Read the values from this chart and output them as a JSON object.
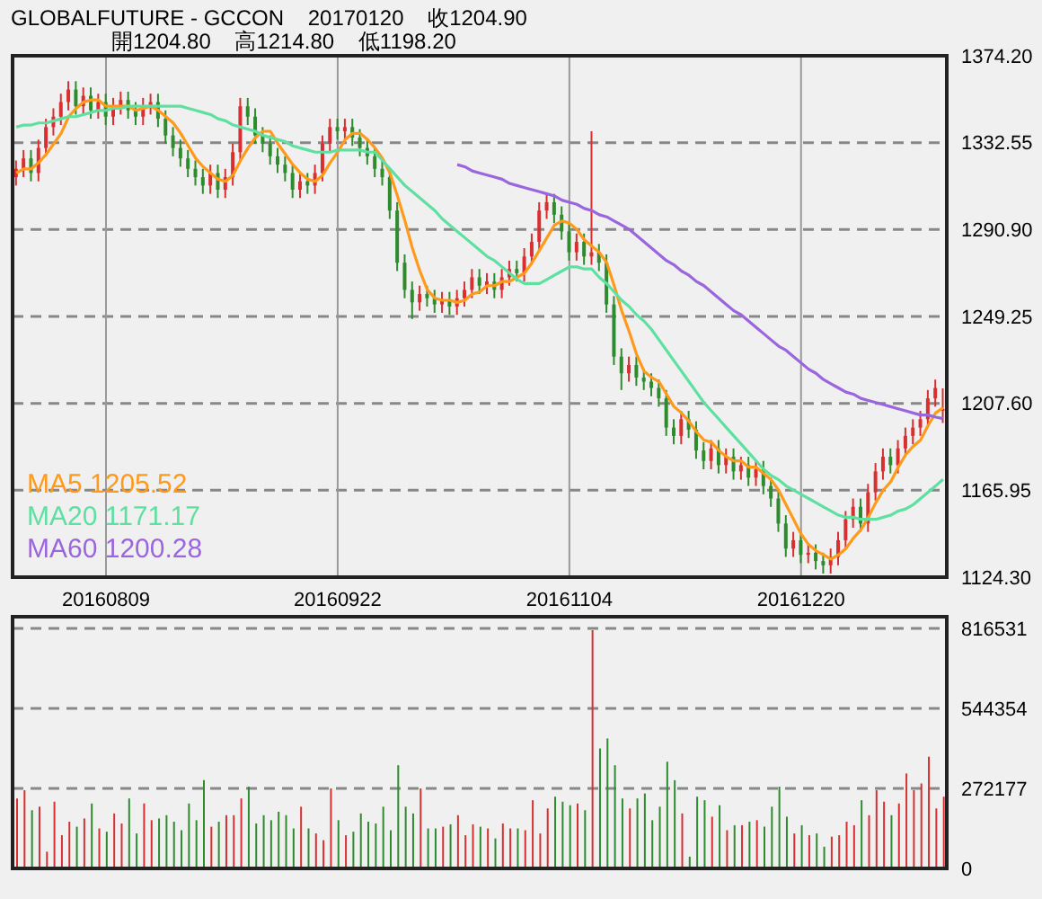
{
  "chart_data": [
    {
      "type": "candlestick",
      "title": "GLOBALFUTURE - GCCON    20170120    收1204.90",
      "subtitle": "開1204.80    高1214.80    低1198.20",
      "categories": [
        null,
        null,
        null,
        null,
        null,
        null,
        null,
        null,
        null,
        null,
        null,
        null,
        "20160809",
        null,
        null,
        null,
        null,
        null,
        null,
        null,
        null,
        null,
        null,
        null,
        null,
        null,
        null,
        null,
        null,
        null,
        null,
        null,
        null,
        null,
        null,
        null,
        null,
        null,
        null,
        null,
        null,
        null,
        null,
        "20160922",
        null,
        null,
        null,
        null,
        null,
        null,
        null,
        null,
        null,
        null,
        null,
        null,
        null,
        null,
        null,
        null,
        null,
        null,
        null,
        null,
        null,
        null,
        null,
        null,
        null,
        null,
        null,
        null,
        null,
        null,
        "20161104",
        null,
        null,
        null,
        null,
        null,
        null,
        null,
        null,
        null,
        null,
        null,
        null,
        null,
        null,
        null,
        null,
        null,
        null,
        null,
        null,
        null,
        null,
        null,
        null,
        null,
        null,
        null,
        null,
        null,
        null,
        "20161220",
        null,
        null,
        null,
        null,
        null,
        null,
        null,
        null,
        null,
        null,
        null,
        null,
        null,
        null,
        null,
        null,
        null,
        null,
        null
      ],
      "ohlc": [
        [
          1316,
          1324,
          1312,
          1320
        ],
        [
          1320,
          1329,
          1316,
          1325
        ],
        [
          1325,
          1329,
          1314,
          1318
        ],
        [
          1318,
          1334,
          1314,
          1330
        ],
        [
          1330,
          1344,
          1326,
          1340
        ],
        [
          1340,
          1349,
          1336,
          1345
        ],
        [
          1345,
          1356,
          1341,
          1352
        ],
        [
          1352,
          1362,
          1348,
          1358
        ],
        [
          1358,
          1362,
          1346,
          1350
        ],
        [
          1350,
          1359,
          1346,
          1355
        ],
        [
          1355,
          1359,
          1344,
          1348
        ],
        [
          1348,
          1356,
          1344,
          1352
        ],
        [
          1352,
          1356,
          1341,
          1345
        ],
        [
          1345,
          1354,
          1341,
          1350
        ],
        [
          1350,
          1357,
          1346,
          1353
        ],
        [
          1353,
          1357,
          1344,
          1348
        ],
        [
          1348,
          1352,
          1341,
          1345
        ],
        [
          1345,
          1354,
          1341,
          1350
        ],
        [
          1350,
          1356,
          1346,
          1352
        ],
        [
          1352,
          1356,
          1340,
          1344
        ],
        [
          1344,
          1348,
          1332,
          1336
        ],
        [
          1336,
          1340,
          1326,
          1330
        ],
        [
          1330,
          1334,
          1321,
          1325
        ],
        [
          1325,
          1329,
          1316,
          1320
        ],
        [
          1320,
          1324,
          1312,
          1316
        ],
        [
          1316,
          1320,
          1308,
          1312
        ],
        [
          1312,
          1322,
          1308,
          1318
        ],
        [
          1318,
          1322,
          1306,
          1310
        ],
        [
          1310,
          1320,
          1306,
          1316
        ],
        [
          1316,
          1332,
          1312,
          1328
        ],
        [
          1328,
          1354,
          1324,
          1350
        ],
        [
          1350,
          1354,
          1341,
          1345
        ],
        [
          1345,
          1349,
          1332,
          1336
        ],
        [
          1336,
          1340,
          1328,
          1332
        ],
        [
          1332,
          1336,
          1322,
          1326
        ],
        [
          1326,
          1330,
          1318,
          1322
        ],
        [
          1322,
          1326,
          1314,
          1318
        ],
        [
          1318,
          1322,
          1306,
          1310
        ],
        [
          1310,
          1318,
          1306,
          1314
        ],
        [
          1314,
          1318,
          1308,
          1312
        ],
        [
          1312,
          1322,
          1308,
          1318
        ],
        [
          1318,
          1336,
          1314,
          1332
        ],
        [
          1332,
          1344,
          1328,
          1340
        ],
        [
          1340,
          1344,
          1334,
          1338
        ],
        [
          1338,
          1344,
          1334,
          1340
        ],
        [
          1340,
          1344,
          1331,
          1335
        ],
        [
          1335,
          1339,
          1326,
          1330
        ],
        [
          1330,
          1334,
          1322,
          1326
        ],
        [
          1326,
          1330,
          1316,
          1320
        ],
        [
          1320,
          1324,
          1312,
          1316
        ],
        [
          1316,
          1320,
          1296,
          1300
        ],
        [
          1300,
          1304,
          1271,
          1275
        ],
        [
          1275,
          1279,
          1258,
          1262
        ],
        [
          1262,
          1266,
          1248,
          1256
        ],
        [
          1256,
          1264,
          1252,
          1260
        ],
        [
          1260,
          1264,
          1254,
          1258
        ],
        [
          1258,
          1262,
          1251,
          1255
        ],
        [
          1255,
          1261,
          1251,
          1257
        ],
        [
          1257,
          1261,
          1250,
          1254
        ],
        [
          1254,
          1262,
          1250,
          1258
        ],
        [
          1258,
          1266,
          1254,
          1262
        ],
        [
          1262,
          1272,
          1258,
          1268
        ],
        [
          1268,
          1272,
          1260,
          1264
        ],
        [
          1264,
          1270,
          1260,
          1266
        ],
        [
          1266,
          1270,
          1258,
          1262
        ],
        [
          1262,
          1272,
          1258,
          1268
        ],
        [
          1268,
          1276,
          1264,
          1272
        ],
        [
          1272,
          1276,
          1266,
          1270
        ],
        [
          1270,
          1282,
          1266,
          1278
        ],
        [
          1278,
          1289,
          1274,
          1285
        ],
        [
          1285,
          1304,
          1281,
          1300
        ],
        [
          1300,
          1308,
          1296,
          1304
        ],
        [
          1304,
          1308,
          1294,
          1298
        ],
        [
          1298,
          1302,
          1286,
          1290
        ],
        [
          1290,
          1294,
          1276,
          1280
        ],
        [
          1280,
          1289,
          1276,
          1285
        ],
        [
          1285,
          1289,
          1274,
          1278
        ],
        [
          1278,
          1338,
          1274,
          1280
        ],
        [
          1280,
          1284,
          1271,
          1275
        ],
        [
          1275,
          1279,
          1251,
          1255
        ],
        [
          1255,
          1259,
          1226,
          1230
        ],
        [
          1230,
          1234,
          1214,
          1222
        ],
        [
          1222,
          1230,
          1218,
          1226
        ],
        [
          1226,
          1230,
          1216,
          1220
        ],
        [
          1220,
          1224,
          1214,
          1218
        ],
        [
          1218,
          1222,
          1211,
          1215
        ],
        [
          1215,
          1219,
          1206,
          1210
        ],
        [
          1210,
          1214,
          1192,
          1196
        ],
        [
          1196,
          1200,
          1188,
          1192
        ],
        [
          1192,
          1204,
          1188,
          1200
        ],
        [
          1200,
          1204,
          1191,
          1195
        ],
        [
          1195,
          1199,
          1181,
          1185
        ],
        [
          1185,
          1189,
          1176,
          1180
        ],
        [
          1180,
          1190,
          1176,
          1186
        ],
        [
          1186,
          1190,
          1174,
          1178
        ],
        [
          1178,
          1186,
          1174,
          1182
        ],
        [
          1182,
          1186,
          1171,
          1175
        ],
        [
          1175,
          1182,
          1171,
          1178
        ],
        [
          1178,
          1182,
          1168,
          1172
        ],
        [
          1172,
          1180,
          1168,
          1176
        ],
        [
          1176,
          1180,
          1164,
          1168
        ],
        [
          1168,
          1172,
          1158,
          1162
        ],
        [
          1162,
          1166,
          1146,
          1150
        ],
        [
          1150,
          1154,
          1134,
          1138
        ],
        [
          1138,
          1146,
          1134,
          1142
        ],
        [
          1142,
          1146,
          1131,
          1135
        ],
        [
          1135,
          1140,
          1131,
          1136
        ],
        [
          1136,
          1140,
          1128,
          1132
        ],
        [
          1132,
          1136,
          1126,
          1130
        ],
        [
          1130,
          1138,
          1126,
          1134
        ],
        [
          1134,
          1146,
          1130,
          1142
        ],
        [
          1142,
          1156,
          1138,
          1152
        ],
        [
          1152,
          1162,
          1148,
          1158
        ],
        [
          1158,
          1162,
          1146,
          1150
        ],
        [
          1150,
          1169,
          1146,
          1165
        ],
        [
          1165,
          1179,
          1161,
          1175
        ],
        [
          1175,
          1186,
          1171,
          1182
        ],
        [
          1182,
          1186,
          1174,
          1178
        ],
        [
          1178,
          1190,
          1174,
          1186
        ],
        [
          1186,
          1196,
          1182,
          1192
        ],
        [
          1192,
          1200,
          1188,
          1196
        ],
        [
          1196,
          1204,
          1192,
          1200
        ],
        [
          1200,
          1214,
          1196,
          1210
        ],
        [
          1210,
          1219,
          1206,
          1215
        ],
        [
          1204.8,
          1214.8,
          1198.2,
          1204.9
        ]
      ],
      "colors": [
        "#d83030",
        "#d83030",
        "#2e8b2e",
        "#d83030",
        "#d83030",
        "#d83030",
        "#d83030",
        "#d83030",
        "#2e8b2e",
        "#d83030",
        "#2e8b2e",
        "#d83030",
        "#2e8b2e",
        "#d83030",
        "#d83030",
        "#2e8b2e",
        "#2e8b2e",
        "#d83030",
        "#d83030",
        "#2e8b2e",
        "#2e8b2e",
        "#2e8b2e",
        "#2e8b2e",
        "#2e8b2e",
        "#2e8b2e",
        "#2e8b2e",
        "#d83030",
        "#2e8b2e",
        "#d83030",
        "#d83030",
        "#d83030",
        "#2e8b2e",
        "#2e8b2e",
        "#2e8b2e",
        "#2e8b2e",
        "#2e8b2e",
        "#2e8b2e",
        "#2e8b2e",
        "#d83030",
        "#2e8b2e",
        "#d83030",
        "#d83030",
        "#d83030",
        "#2e8b2e",
        "#d83030",
        "#2e8b2e",
        "#2e8b2e",
        "#2e8b2e",
        "#2e8b2e",
        "#2e8b2e",
        "#2e8b2e",
        "#2e8b2e",
        "#2e8b2e",
        "#2e8b2e",
        "#d83030",
        "#2e8b2e",
        "#2e8b2e",
        "#d83030",
        "#2e8b2e",
        "#d83030",
        "#d83030",
        "#d83030",
        "#2e8b2e",
        "#d83030",
        "#2e8b2e",
        "#d83030",
        "#d83030",
        "#2e8b2e",
        "#d83030",
        "#d83030",
        "#d83030",
        "#d83030",
        "#2e8b2e",
        "#2e8b2e",
        "#2e8b2e",
        "#d83030",
        "#2e8b2e",
        "#d83030",
        "#2e8b2e",
        "#2e8b2e",
        "#2e8b2e",
        "#2e8b2e",
        "#d83030",
        "#2e8b2e",
        "#2e8b2e",
        "#2e8b2e",
        "#2e8b2e",
        "#2e8b2e",
        "#2e8b2e",
        "#d83030",
        "#2e8b2e",
        "#2e8b2e",
        "#2e8b2e",
        "#d83030",
        "#2e8b2e",
        "#d83030",
        "#2e8b2e",
        "#d83030",
        "#2e8b2e",
        "#d83030",
        "#2e8b2e",
        "#2e8b2e",
        "#2e8b2e",
        "#2e8b2e",
        "#d83030",
        "#2e8b2e",
        "#d83030",
        "#2e8b2e",
        "#2e8b2e",
        "#d83030",
        "#d83030",
        "#d83030",
        "#d83030",
        "#2e8b2e",
        "#d83030",
        "#d83030",
        "#d83030",
        "#2e8b2e",
        "#d83030",
        "#d83030",
        "#d83030",
        "#d83030",
        "#d83030",
        "#d83030",
        "#d83030"
      ],
      "series": [
        {
          "name": "MA5 1205.52",
          "type": "line",
          "color": "#ff9a1a",
          "values": [
            1318,
            1320,
            1320,
            1323,
            1327,
            1332,
            1337,
            1345,
            1349,
            1352,
            1353,
            1353,
            1350,
            1350,
            1350,
            1350,
            1348,
            1349,
            1350,
            1348,
            1345,
            1342,
            1337,
            1331,
            1325,
            1321,
            1318,
            1315,
            1314,
            1317,
            1324,
            1330,
            1335,
            1338,
            1338,
            1332,
            1327,
            1322,
            1318,
            1315,
            1314,
            1317,
            1323,
            1328,
            1334,
            1337,
            1337,
            1334,
            1330,
            1325,
            1318,
            1307,
            1295,
            1282,
            1271,
            1262,
            1258,
            1257,
            1257,
            1256,
            1257,
            1260,
            1261,
            1264,
            1264,
            1266,
            1266,
            1268,
            1270,
            1275,
            1281,
            1287,
            1293,
            1295,
            1294,
            1291,
            1286,
            1283,
            1280,
            1275,
            1264,
            1252,
            1242,
            1231,
            1223,
            1220,
            1218,
            1212,
            1206,
            1203,
            1199,
            1194,
            1190,
            1189,
            1185,
            1182,
            1180,
            1180,
            1177,
            1177,
            1174,
            1171,
            1166,
            1159,
            1152,
            1145,
            1140,
            1137,
            1135,
            1133,
            1135,
            1138,
            1143,
            1147,
            1153,
            1160,
            1166,
            1170,
            1177,
            1183,
            1187,
            1190,
            1197,
            1203,
            1205.52
          ]
        },
        {
          "name": "MA20 1171.17",
          "type": "line",
          "color": "#5fe0a0",
          "values": [
            1340,
            1341,
            1341,
            1342,
            1342,
            1343,
            1344,
            1345,
            1345,
            1346,
            1347,
            1348,
            1348,
            1349,
            1349,
            1350,
            1350,
            1350,
            1350,
            1350,
            1350,
            1350,
            1350,
            1349,
            1348,
            1347,
            1346,
            1344,
            1343,
            1341,
            1340,
            1339,
            1338,
            1336,
            1335,
            1334,
            1333,
            1331,
            1330,
            1329,
            1328,
            1328,
            1328,
            1329,
            1329,
            1329,
            1329,
            1328,
            1328,
            1324,
            1320,
            1316,
            1312,
            1309,
            1306,
            1303,
            1300,
            1296,
            1293,
            1290,
            1287,
            1284,
            1281,
            1278,
            1276,
            1273,
            1270,
            1267,
            1265,
            1265,
            1265,
            1267,
            1269,
            1271,
            1273,
            1273,
            1272,
            1272,
            1268,
            1265,
            1261,
            1257,
            1254,
            1250,
            1247,
            1243,
            1238,
            1233,
            1228,
            1223,
            1218,
            1213,
            1208,
            1204,
            1200,
            1196,
            1192,
            1188,
            1184,
            1180,
            1176,
            1173,
            1171,
            1168,
            1166,
            1164,
            1162,
            1160,
            1158,
            1156,
            1154,
            1153,
            1153,
            1152,
            1152,
            1152,
            1153,
            1154,
            1156,
            1157,
            1159,
            1162,
            1165,
            1168,
            1171.17
          ]
        },
        {
          "name": "MA60 1200.28",
          "type": "line",
          "color": "#9966dd",
          "values": [
            null,
            null,
            null,
            null,
            null,
            null,
            null,
            null,
            null,
            null,
            null,
            null,
            null,
            null,
            null,
            null,
            null,
            null,
            null,
            null,
            null,
            null,
            null,
            null,
            null,
            null,
            null,
            null,
            null,
            null,
            null,
            null,
            null,
            null,
            null,
            null,
            null,
            null,
            null,
            null,
            null,
            null,
            null,
            null,
            null,
            null,
            null,
            null,
            null,
            null,
            null,
            null,
            null,
            null,
            null,
            null,
            null,
            null,
            null,
            1322,
            1321,
            1319,
            1318,
            1317,
            1316,
            1315,
            1313,
            1312,
            1311,
            1310,
            1309,
            1308,
            1307,
            1305,
            1304,
            1303,
            1301,
            1300,
            1298,
            1297,
            1295,
            1293,
            1291,
            1288,
            1285,
            1282,
            1279,
            1276,
            1274,
            1271,
            1269,
            1266,
            1264,
            1261,
            1258,
            1255,
            1252,
            1250,
            1247,
            1244,
            1241,
            1238,
            1235,
            1233,
            1230,
            1227,
            1224,
            1222,
            1219,
            1217,
            1215,
            1213,
            1212,
            1210,
            1209,
            1208,
            1207,
            1206,
            1205,
            1204,
            1203,
            1202,
            1202,
            1201,
            1200.28
          ]
        }
      ],
      "ylim": [
        1124.3,
        1374.2
      ],
      "yticks": [
        {
          "value": 1124.3,
          "label": "1124.30"
        },
        {
          "value": 1165.95,
          "label": "1165.95"
        },
        {
          "value": 1207.6,
          "label": "1207.60"
        },
        {
          "value": 1249.25,
          "label": "1249.25"
        },
        {
          "value": 1290.9,
          "label": "1290.90"
        },
        {
          "value": 1332.55,
          "label": "1332.55"
        },
        {
          "value": 1374.2,
          "label": "1374.20"
        }
      ],
      "grid": true,
      "legend": "bottom left"
    },
    {
      "type": "bar",
      "categories": [
        null,
        null,
        null,
        null,
        null,
        null,
        null,
        null,
        null,
        null,
        null,
        null,
        null,
        null,
        null,
        null,
        null,
        null,
        null,
        null,
        null,
        null,
        null,
        null,
        null,
        null,
        null,
        null,
        null,
        null,
        null,
        null,
        null,
        null,
        null,
        null,
        null,
        null,
        null,
        null,
        null,
        null,
        null,
        null,
        null,
        null,
        null,
        null,
        null,
        null,
        null,
        null,
        null,
        null,
        null,
        null,
        null,
        null,
        null,
        null,
        null,
        null,
        null,
        null,
        null,
        null,
        null,
        null,
        null,
        null,
        null,
        null,
        null,
        null,
        null,
        null,
        null,
        null,
        null,
        null,
        null,
        null,
        null,
        null,
        null,
        null,
        null,
        null,
        null,
        null,
        null,
        null,
        null,
        null,
        null,
        null,
        null,
        null,
        null,
        null,
        null,
        null,
        null,
        null,
        null,
        null,
        null,
        null,
        null,
        null,
        null,
        null,
        null,
        null,
        null,
        null,
        null,
        null,
        null,
        null,
        null,
        null,
        null,
        null,
        null
      ],
      "values": [
        238000,
        266000,
        198000,
        210000,
        57000,
        227000,
        113000,
        159000,
        142000,
        170000,
        221000,
        136000,
        125000,
        187000,
        153000,
        238000,
        119000,
        221000,
        164000,
        170000,
        181000,
        159000,
        130000,
        221000,
        164000,
        300000,
        142000,
        159000,
        181000,
        181000,
        238000,
        278000,
        153000,
        181000,
        164000,
        193000,
        181000,
        136000,
        210000,
        136000,
        119000,
        96000,
        272000,
        164000,
        113000,
        125000,
        187000,
        159000,
        153000,
        210000,
        130000,
        351000,
        210000,
        187000,
        272000,
        136000,
        136000,
        142000,
        150000,
        181000,
        113000,
        150000,
        142000,
        136000,
        102000,
        153000,
        136000,
        136000,
        130000,
        232000,
        119000,
        204000,
        244000,
        227000,
        215000,
        221000,
        198000,
        810000,
        408000,
        442000,
        351000,
        238000,
        204000,
        238000,
        255000,
        164000,
        210000,
        363000,
        300000,
        187000,
        40000,
        244000,
        232000,
        176000,
        215000,
        130000,
        147000,
        147000,
        159000,
        164000,
        142000,
        210000,
        278000,
        176000,
        119000,
        147000,
        113000,
        119000,
        74000,
        108000,
        113000,
        159000,
        147000,
        232000,
        181000,
        266000,
        227000,
        181000,
        221000,
        323000,
        266000,
        289000,
        380000,
        204000,
        244000
      ],
      "colors": [
        "#d83030",
        "#d83030",
        "#2e8b2e",
        "#d83030",
        "#d83030",
        "#d83030",
        "#d83030",
        "#d83030",
        "#2e8b2e",
        "#d83030",
        "#2e8b2e",
        "#d83030",
        "#2e8b2e",
        "#d83030",
        "#d83030",
        "#2e8b2e",
        "#2e8b2e",
        "#d83030",
        "#d83030",
        "#2e8b2e",
        "#2e8b2e",
        "#2e8b2e",
        "#2e8b2e",
        "#2e8b2e",
        "#2e8b2e",
        "#2e8b2e",
        "#d83030",
        "#2e8b2e",
        "#d83030",
        "#d83030",
        "#d83030",
        "#2e8b2e",
        "#2e8b2e",
        "#2e8b2e",
        "#2e8b2e",
        "#2e8b2e",
        "#2e8b2e",
        "#2e8b2e",
        "#d83030",
        "#2e8b2e",
        "#d83030",
        "#d83030",
        "#d83030",
        "#2e8b2e",
        "#d83030",
        "#2e8b2e",
        "#2e8b2e",
        "#2e8b2e",
        "#2e8b2e",
        "#2e8b2e",
        "#2e8b2e",
        "#2e8b2e",
        "#2e8b2e",
        "#2e8b2e",
        "#d83030",
        "#2e8b2e",
        "#2e8b2e",
        "#d83030",
        "#2e8b2e",
        "#d83030",
        "#d83030",
        "#d83030",
        "#2e8b2e",
        "#d83030",
        "#2e8b2e",
        "#d83030",
        "#d83030",
        "#2e8b2e",
        "#d83030",
        "#d83030",
        "#d83030",
        "#d83030",
        "#2e8b2e",
        "#2e8b2e",
        "#2e8b2e",
        "#d83030",
        "#2e8b2e",
        "#d83030",
        "#2e8b2e",
        "#2e8b2e",
        "#2e8b2e",
        "#2e8b2e",
        "#d83030",
        "#2e8b2e",
        "#2e8b2e",
        "#2e8b2e",
        "#2e8b2e",
        "#2e8b2e",
        "#2e8b2e",
        "#d83030",
        "#2e8b2e",
        "#2e8b2e",
        "#2e8b2e",
        "#d83030",
        "#2e8b2e",
        "#d83030",
        "#2e8b2e",
        "#d83030",
        "#2e8b2e",
        "#d83030",
        "#2e8b2e",
        "#2e8b2e",
        "#2e8b2e",
        "#2e8b2e",
        "#d83030",
        "#2e8b2e",
        "#d83030",
        "#2e8b2e",
        "#2e8b2e",
        "#d83030",
        "#d83030",
        "#d83030",
        "#d83030",
        "#2e8b2e",
        "#d83030",
        "#d83030",
        "#d83030",
        "#2e8b2e",
        "#d83030",
        "#d83030",
        "#d83030",
        "#d83030",
        "#d83030",
        "#d83030",
        "#d83030"
      ],
      "ylim": [
        0,
        856000
      ],
      "yticks": [
        0,
        272177,
        544354,
        816531
      ],
      "grid": "y"
    }
  ]
}
